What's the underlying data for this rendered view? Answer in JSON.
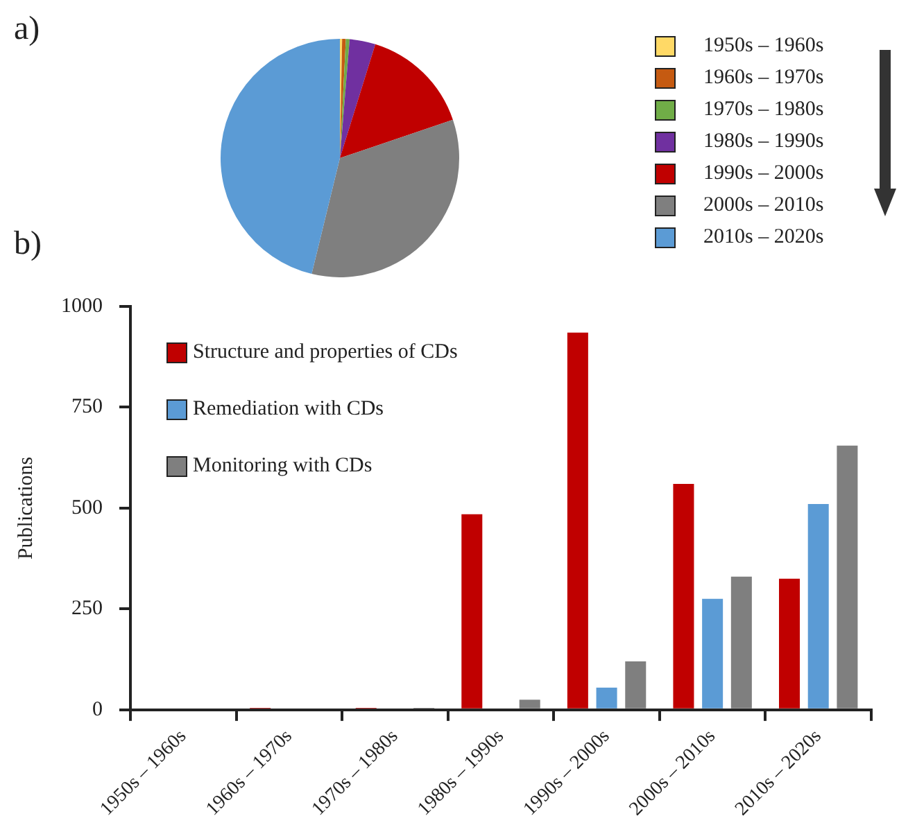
{
  "chart_data": [
    {
      "type": "pie",
      "title": "a)",
      "categories": [
        "1950s – 1960s",
        "1960s – 1970s",
        "1970s – 1980s",
        "1980s – 1990s",
        "1990s – 2000s",
        "2000s – 2010s",
        "2010s – 2020s"
      ],
      "values": [
        0.3,
        0.5,
        0.5,
        3.5,
        15,
        34,
        46.2
      ],
      "colors": [
        "#ffd966",
        "#c55a11",
        "#70ad47",
        "#7030a0",
        "#c00000",
        "#7f7f7f",
        "#5b9bd5"
      ],
      "legend": "right"
    },
    {
      "type": "bar",
      "title": "b)",
      "categories": [
        "1950s – 1960s",
        "1960s – 1970s",
        "1970s – 1980s",
        "1980s – 1990s",
        "1990s – 2000s",
        "2000s – 2010s",
        "2010s – 2020s"
      ],
      "ylabel": "Publications",
      "ylim": [
        0,
        1000
      ],
      "yticks": [
        0,
        250,
        500,
        750,
        1000
      ],
      "grid": false,
      "legend": "top left",
      "series": [
        {
          "name": "Structure and properties of CDs",
          "color": "#c00000",
          "values": [
            0,
            5,
            5,
            485,
            935,
            560,
            325
          ]
        },
        {
          "name": "Remediation with CDs",
          "color": "#5b9bd5",
          "values": [
            0,
            0,
            0,
            0,
            55,
            275,
            510
          ]
        },
        {
          "name": "Monitoring with CDs",
          "color": "#7f7f7f",
          "values": [
            0,
            0,
            5,
            25,
            120,
            330,
            655
          ]
        }
      ]
    }
  ]
}
